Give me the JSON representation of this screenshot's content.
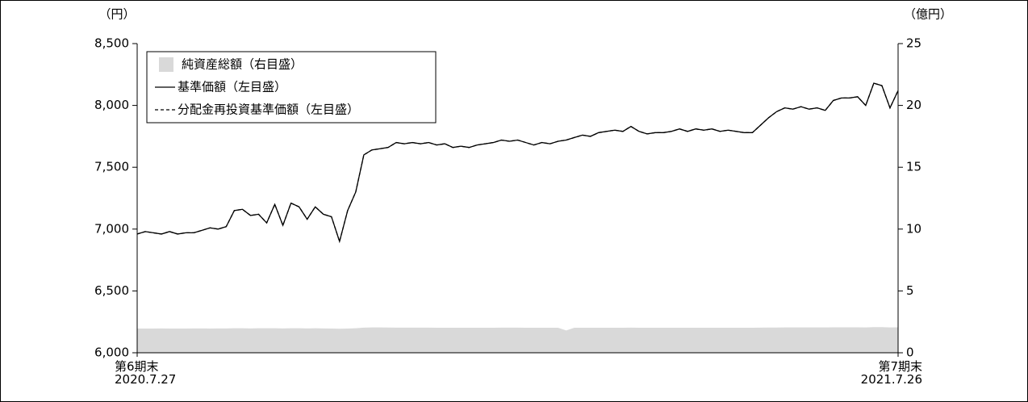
{
  "chart_data": {
    "type": "line",
    "y_unit_label": "（円）",
    "y2_unit_label": "（億円）",
    "categories": [
      "第6期末\n2020.7.27",
      null,
      null,
      null,
      null,
      null,
      null,
      null,
      null,
      null,
      null,
      null,
      null,
      null,
      null,
      null,
      null,
      null,
      null,
      null,
      null,
      null,
      null,
      null,
      null,
      null,
      null,
      null,
      null,
      null,
      null,
      null,
      null,
      null,
      null,
      null,
      null,
      null,
      null,
      null,
      null,
      null,
      null,
      null,
      null,
      null,
      null,
      null,
      null,
      null,
      null,
      null,
      null,
      null,
      null,
      null,
      null,
      null,
      null,
      null,
      null,
      null,
      null,
      null,
      null,
      null,
      null,
      null,
      null,
      null,
      null,
      null,
      null,
      null,
      null,
      null,
      null,
      null,
      null,
      null,
      null,
      null,
      null,
      null,
      null,
      null,
      null,
      null,
      null,
      null,
      null,
      null,
      null,
      null,
      "第7期末\n2021.7.26"
    ],
    "series": [
      {
        "name": "純資産総額（右目盛）",
        "color": "#d9d9d9",
        "axis": "y2",
        "style": "area",
        "values": [
          1.96,
          1.96,
          1.96,
          1.97,
          1.96,
          1.96,
          1.96,
          1.97,
          1.97,
          1.96,
          1.97,
          1.97,
          1.98,
          1.98,
          1.97,
          1.98,
          1.98,
          1.98,
          1.97,
          1.98,
          1.98,
          1.97,
          1.98,
          1.97,
          1.96,
          1.94,
          1.96,
          1.98,
          2.03,
          2.05,
          2.05,
          2.04,
          2.03,
          2.03,
          2.03,
          2.03,
          2.03,
          2.02,
          2.02,
          2.02,
          2.02,
          2.02,
          2.02,
          2.02,
          2.02,
          2.03,
          2.03,
          2.03,
          2.02,
          2.02,
          2.02,
          2.02,
          2.02,
          1.8,
          2.02,
          2.02,
          2.02,
          2.02,
          2.02,
          2.02,
          2.02,
          2.03,
          2.02,
          2.02,
          2.02,
          2.02,
          2.02,
          2.02,
          2.02,
          2.02,
          2.02,
          2.02,
          2.02,
          2.02,
          2.02,
          2.02,
          2.02,
          2.03,
          2.04,
          2.04,
          2.05,
          2.05,
          2.05,
          2.05,
          2.05,
          2.05,
          2.06,
          2.06,
          2.06,
          2.06,
          2.05,
          2.07,
          2.07,
          2.05,
          2.06
        ]
      },
      {
        "name": "基準価額（左目盛）",
        "color": "#000000",
        "style": "solid",
        "values": [
          6960,
          6980,
          6970,
          6960,
          6980,
          6960,
          6970,
          6970,
          6990,
          7010,
          7000,
          7020,
          7150,
          7160,
          7110,
          7120,
          7050,
          7200,
          7030,
          7210,
          7180,
          7080,
          7180,
          7120,
          7100,
          6900,
          7150,
          7300,
          7600,
          7640,
          7650,
          7660,
          7700,
          7690,
          7700,
          7690,
          7700,
          7680,
          7690,
          7660,
          7670,
          7660,
          7680,
          7690,
          7700,
          7720,
          7710,
          7720,
          7700,
          7680,
          7700,
          7690,
          7710,
          7720,
          7740,
          7760,
          7750,
          7780,
          7790,
          7800,
          7790,
          7830,
          7790,
          7770,
          7780,
          7780,
          7790,
          7810,
          7790,
          7810,
          7800,
          7810,
          7790,
          7800,
          7790,
          7780,
          7780,
          7840,
          7900,
          7950,
          7980,
          7970,
          7990,
          7970,
          7980,
          7960,
          8040,
          8060,
          8060,
          8070,
          8000,
          8180,
          8160,
          7980,
          8120
        ]
      },
      {
        "name": "分配金再投資基準価額（左目盛）",
        "color": "#000000",
        "style": "dashed",
        "values": [
          6960,
          6980,
          6970,
          6960,
          6980,
          6960,
          6970,
          6970,
          6990,
          7010,
          7000,
          7020,
          7150,
          7160,
          7110,
          7120,
          7050,
          7200,
          7030,
          7210,
          7180,
          7080,
          7180,
          7120,
          7100,
          6900,
          7150,
          7300,
          7600,
          7640,
          7650,
          7660,
          7700,
          7690,
          7700,
          7690,
          7700,
          7680,
          7690,
          7660,
          7670,
          7660,
          7680,
          7690,
          7700,
          7720,
          7710,
          7720,
          7700,
          7680,
          7700,
          7690,
          7710,
          7720,
          7740,
          7760,
          7750,
          7780,
          7790,
          7800,
          7790,
          7830,
          7790,
          7770,
          7780,
          7780,
          7790,
          7810,
          7790,
          7810,
          7800,
          7810,
          7790,
          7800,
          7790,
          7780,
          7780,
          7840,
          7900,
          7950,
          7980,
          7970,
          7990,
          7970,
          7980,
          7960,
          8040,
          8060,
          8060,
          8070,
          8000,
          8180,
          8160,
          7980,
          8120
        ]
      }
    ],
    "ylim": [
      6000,
      8500
    ],
    "yticks": [
      {
        "value": 6000,
        "label": "6,000"
      },
      {
        "value": 6500,
        "label": "6,500"
      },
      {
        "value": 7000,
        "label": "7,000"
      },
      {
        "value": 7500,
        "label": "7,500"
      },
      {
        "value": 8000,
        "label": "8,000"
      },
      {
        "value": 8500,
        "label": "8,500"
      }
    ],
    "y2lim": [
      0,
      25
    ],
    "y2ticks": [
      0,
      5,
      10,
      15,
      20,
      25
    ],
    "legend": "upper-left",
    "grid": false
  }
}
